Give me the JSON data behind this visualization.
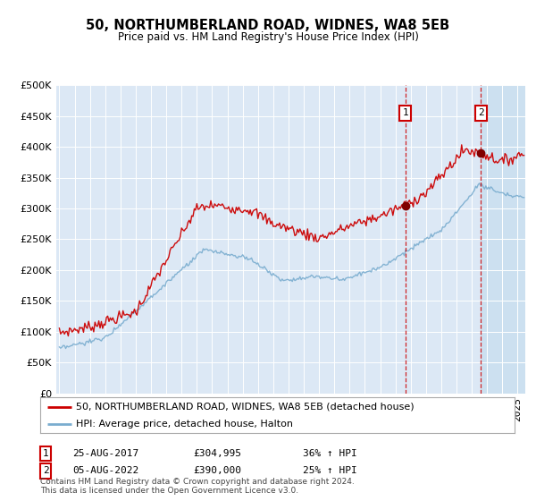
{
  "title": "50, NORTHUMBERLAND ROAD, WIDNES, WA8 5EB",
  "subtitle": "Price paid vs. HM Land Registry's House Price Index (HPI)",
  "legend_line1": "50, NORTHUMBERLAND ROAD, WIDNES, WA8 5EB (detached house)",
  "legend_line2": "HPI: Average price, detached house, Halton",
  "annotation1_date": "25-AUG-2017",
  "annotation1_price": "£304,995",
  "annotation1_hpi": "36% ↑ HPI",
  "annotation1_year": 2017.64,
  "annotation1_value": 304995,
  "annotation2_date": "05-AUG-2022",
  "annotation2_price": "£390,000",
  "annotation2_hpi": "25% ↑ HPI",
  "annotation2_year": 2022.6,
  "annotation2_value": 390000,
  "footer": "Contains HM Land Registry data © Crown copyright and database right 2024.\nThis data is licensed under the Open Government Licence v3.0.",
  "red_color": "#cc0000",
  "blue_color": "#7aadcf",
  "dot_color": "#800000",
  "background_plot": "#dce8f5",
  "background_highlight": "#cce0f0",
  "background_fig": "#ffffff",
  "ylim_max": 500000,
  "xlim_start": 1994.8,
  "xlim_end": 2025.5
}
